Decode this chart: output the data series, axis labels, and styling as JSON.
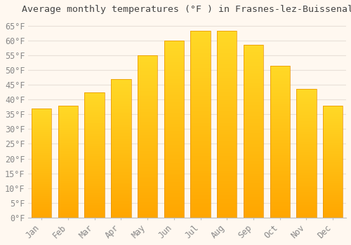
{
  "title": "Average monthly temperatures (°F ) in Frasnes-lez-Buissenal",
  "months": [
    "Jan",
    "Feb",
    "Mar",
    "Apr",
    "May",
    "Jun",
    "Jul",
    "Aug",
    "Sep",
    "Oct",
    "Nov",
    "Dec"
  ],
  "values": [
    37.0,
    38.0,
    42.5,
    47.0,
    55.0,
    60.0,
    63.3,
    63.3,
    58.5,
    51.5,
    43.5,
    38.0
  ],
  "bar_color_top": "#FFB300",
  "bar_color_bottom": "#FFA040",
  "bar_color_edge": "#E89000",
  "background_color": "#FFF8F0",
  "plot_bg_color": "#FFF8F0",
  "grid_color": "#E8E0D8",
  "ytick_min": 0,
  "ytick_max": 65,
  "ytick_step": 5,
  "title_fontsize": 9.5,
  "tick_fontsize": 8.5,
  "tick_font_family": "monospace"
}
